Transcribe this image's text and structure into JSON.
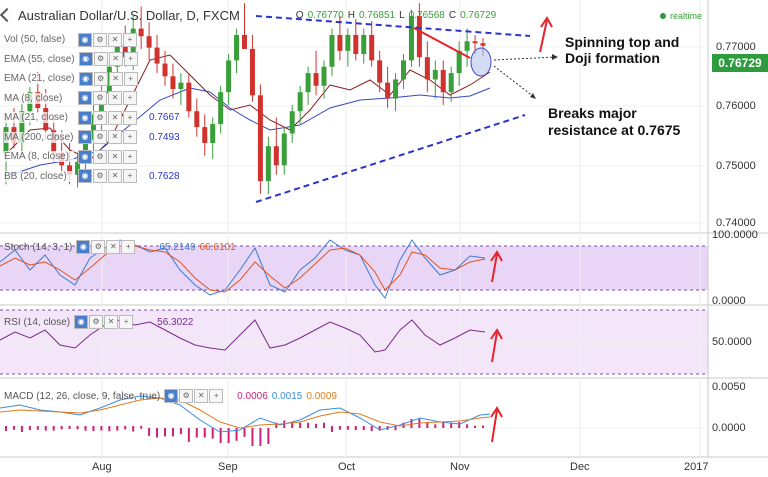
{
  "header": {
    "title": "Australian Dollar/U.S. Dollar, D, FXCM",
    "ohlc": [
      {
        "label": "O",
        "value": "0.76770"
      },
      {
        "label": "H",
        "value": "0.76851"
      },
      {
        "label": "L",
        "value": "0.76568"
      },
      {
        "label": "C",
        "value": "0.76729"
      }
    ],
    "realtime": "realtime"
  },
  "indicators": [
    {
      "label": "Vol (50, false)",
      "value": ""
    },
    {
      "label": "EMA (55, close)",
      "value": ""
    },
    {
      "label": "EMA (21, close)",
      "value": ""
    },
    {
      "label": "MA (8, close)",
      "value": ""
    },
    {
      "label": "MA (21, close)",
      "value": "0.7667"
    },
    {
      "label": "MA (200, close)",
      "value": "0.7493"
    },
    {
      "label": "EMA (8, close)",
      "value": ""
    },
    {
      "label": "BB (20, close)",
      "value": "0.7628"
    }
  ],
  "annotations": {
    "spinning_top": "Spinning top and Doji formation",
    "breaks": "Breaks major resistance at 0.7675"
  },
  "price_axis": {
    "ticks": [
      "0.77000",
      "0.76000",
      "0.75000",
      "0.74000"
    ],
    "current": "0.76729"
  },
  "stoch": {
    "label": "Stoch (14, 3, 1)",
    "k": "65.2149",
    "d": "66.6101",
    "ticks": [
      "100.0000",
      "0.0000"
    ]
  },
  "rsi": {
    "label": "RSI (14, close)",
    "value": "56.3022",
    "ticks": [
      "50.0000"
    ]
  },
  "macd": {
    "label": "MACD (12, 26, close, 9, false, true)",
    "hist": "0.0006",
    "macd": "0.0015",
    "signal": "0.0009",
    "ticks": [
      "0.0050",
      "0.0000"
    ]
  },
  "time_axis": [
    "Aug",
    "Sep",
    "Oct",
    "Nov",
    "Dec",
    "2017"
  ],
  "colors": {
    "up": "#3a9e3a",
    "down": "#d0332e",
    "accent_red": "#e8222a",
    "trend_blue": "#2b35c8",
    "stoch_band": "#e9d6f7",
    "rsi_band": "#f3e6f9",
    "price_tag": "#2e9c3e"
  },
  "chart_data": {
    "type": "candlestick",
    "title": "Australian Dollar/U.S. Dollar, D, FXCM",
    "ylim": [
      0.738,
      0.7745
    ],
    "candles": [
      {
        "o": 0.7505,
        "h": 0.7562,
        "l": 0.7455,
        "c": 0.7545
      },
      {
        "o": 0.7545,
        "h": 0.7575,
        "l": 0.7512,
        "c": 0.752
      },
      {
        "o": 0.752,
        "h": 0.7585,
        "l": 0.7505,
        "c": 0.757
      },
      {
        "o": 0.757,
        "h": 0.7608,
        "l": 0.7548,
        "c": 0.76
      },
      {
        "o": 0.76,
        "h": 0.7632,
        "l": 0.7565,
        "c": 0.7575
      },
      {
        "o": 0.7575,
        "h": 0.7605,
        "l": 0.7525,
        "c": 0.754
      },
      {
        "o": 0.754,
        "h": 0.756,
        "l": 0.749,
        "c": 0.7505
      },
      {
        "o": 0.7505,
        "h": 0.754,
        "l": 0.747,
        "c": 0.7485
      },
      {
        "o": 0.7485,
        "h": 0.752,
        "l": 0.7455,
        "c": 0.747
      },
      {
        "o": 0.747,
        "h": 0.7505,
        "l": 0.745,
        "c": 0.749
      },
      {
        "o": 0.749,
        "h": 0.754,
        "l": 0.747,
        "c": 0.7525
      },
      {
        "o": 0.7525,
        "h": 0.7585,
        "l": 0.7505,
        "c": 0.7565
      },
      {
        "o": 0.7565,
        "h": 0.7612,
        "l": 0.754,
        "c": 0.7598
      },
      {
        "o": 0.7598,
        "h": 0.765,
        "l": 0.758,
        "c": 0.764
      },
      {
        "o": 0.764,
        "h": 0.769,
        "l": 0.762,
        "c": 0.7675
      },
      {
        "o": 0.7675,
        "h": 0.7705,
        "l": 0.764,
        "c": 0.7655
      },
      {
        "o": 0.7655,
        "h": 0.772,
        "l": 0.7635,
        "c": 0.77
      },
      {
        "o": 0.77,
        "h": 0.7735,
        "l": 0.7668,
        "c": 0.7688
      },
      {
        "o": 0.7688,
        "h": 0.771,
        "l": 0.765,
        "c": 0.767
      },
      {
        "o": 0.767,
        "h": 0.769,
        "l": 0.763,
        "c": 0.7645
      },
      {
        "o": 0.7645,
        "h": 0.7665,
        "l": 0.761,
        "c": 0.7625
      },
      {
        "o": 0.7625,
        "h": 0.7645,
        "l": 0.759,
        "c": 0.7605
      },
      {
        "o": 0.7605,
        "h": 0.763,
        "l": 0.758,
        "c": 0.7615
      },
      {
        "o": 0.7615,
        "h": 0.763,
        "l": 0.756,
        "c": 0.757
      },
      {
        "o": 0.757,
        "h": 0.759,
        "l": 0.753,
        "c": 0.7545
      },
      {
        "o": 0.7545,
        "h": 0.7565,
        "l": 0.75,
        "c": 0.752
      },
      {
        "o": 0.752,
        "h": 0.756,
        "l": 0.7495,
        "c": 0.755
      },
      {
        "o": 0.755,
        "h": 0.761,
        "l": 0.7535,
        "c": 0.76
      },
      {
        "o": 0.76,
        "h": 0.766,
        "l": 0.758,
        "c": 0.765
      },
      {
        "o": 0.765,
        "h": 0.77,
        "l": 0.763,
        "c": 0.769
      },
      {
        "o": 0.769,
        "h": 0.774,
        "l": 0.7668,
        "c": 0.7668
      },
      {
        "o": 0.7668,
        "h": 0.769,
        "l": 0.7585,
        "c": 0.7595
      },
      {
        "o": 0.7595,
        "h": 0.7612,
        "l": 0.744,
        "c": 0.746
      },
      {
        "o": 0.746,
        "h": 0.753,
        "l": 0.744,
        "c": 0.7515
      },
      {
        "o": 0.7515,
        "h": 0.756,
        "l": 0.747,
        "c": 0.7485
      },
      {
        "o": 0.7485,
        "h": 0.7545,
        "l": 0.747,
        "c": 0.7535
      },
      {
        "o": 0.7535,
        "h": 0.758,
        "l": 0.752,
        "c": 0.757
      },
      {
        "o": 0.757,
        "h": 0.761,
        "l": 0.755,
        "c": 0.76
      },
      {
        "o": 0.76,
        "h": 0.764,
        "l": 0.758,
        "c": 0.763
      },
      {
        "o": 0.763,
        "h": 0.7665,
        "l": 0.7595,
        "c": 0.761
      },
      {
        "o": 0.761,
        "h": 0.765,
        "l": 0.759,
        "c": 0.764
      },
      {
        "o": 0.764,
        "h": 0.77,
        "l": 0.7625,
        "c": 0.769
      },
      {
        "o": 0.769,
        "h": 0.772,
        "l": 0.765,
        "c": 0.7665
      },
      {
        "o": 0.7665,
        "h": 0.77,
        "l": 0.764,
        "c": 0.769
      },
      {
        "o": 0.769,
        "h": 0.7715,
        "l": 0.765,
        "c": 0.766
      },
      {
        "o": 0.766,
        "h": 0.77,
        "l": 0.7645,
        "c": 0.769
      },
      {
        "o": 0.769,
        "h": 0.7712,
        "l": 0.764,
        "c": 0.765
      },
      {
        "o": 0.765,
        "h": 0.7665,
        "l": 0.76,
        "c": 0.7615
      },
      {
        "o": 0.7615,
        "h": 0.764,
        "l": 0.7575,
        "c": 0.759
      },
      {
        "o": 0.759,
        "h": 0.763,
        "l": 0.757,
        "c": 0.762
      },
      {
        "o": 0.762,
        "h": 0.766,
        "l": 0.7605,
        "c": 0.765
      },
      {
        "o": 0.765,
        "h": 0.773,
        "l": 0.764,
        "c": 0.772
      },
      {
        "o": 0.772,
        "h": 0.774,
        "l": 0.764,
        "c": 0.7655
      },
      {
        "o": 0.7655,
        "h": 0.768,
        "l": 0.76,
        "c": 0.762
      },
      {
        "o": 0.762,
        "h": 0.765,
        "l": 0.759,
        "c": 0.7635
      },
      {
        "o": 0.7635,
        "h": 0.765,
        "l": 0.758,
        "c": 0.76
      },
      {
        "o": 0.76,
        "h": 0.764,
        "l": 0.7585,
        "c": 0.763
      },
      {
        "o": 0.763,
        "h": 0.768,
        "l": 0.761,
        "c": 0.7665
      },
      {
        "o": 0.7665,
        "h": 0.77,
        "l": 0.764,
        "c": 0.768
      },
      {
        "o": 0.768,
        "h": 0.769,
        "l": 0.766,
        "c": 0.7677
      },
      {
        "o": 0.7677,
        "h": 0.7685,
        "l": 0.7657,
        "c": 0.7673
      }
    ]
  }
}
